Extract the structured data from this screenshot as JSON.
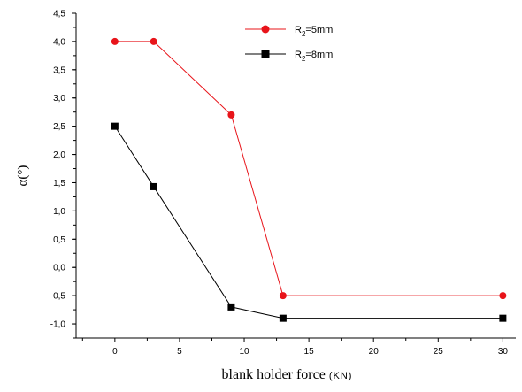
{
  "chart_data": {
    "type": "line",
    "xlabel": "blank holder force",
    "xlabel_unit": "(KN)",
    "ylabel": "α(°)",
    "xlim": [
      -3,
      31
    ],
    "ylim": [
      -1.25,
      4.5
    ],
    "xticks": [
      0,
      5,
      10,
      15,
      20,
      25,
      30
    ],
    "yticks": [
      -1.0,
      -0.5,
      0.0,
      0.5,
      1.0,
      1.5,
      2.0,
      2.5,
      3.0,
      3.5,
      4.0,
      4.5
    ],
    "ytick_labels": [
      "-1,0",
      "-0,5",
      "0,0",
      "0,5",
      "1,0",
      "1,5",
      "2,0",
      "2,5",
      "3,0",
      "3,5",
      "4,0",
      "4,5"
    ],
    "legend_position": "top-right",
    "series": [
      {
        "name": "R2=5mm",
        "legend_main": "R",
        "legend_sub": "2",
        "legend_rest": "=5mm",
        "color": "#e8141a",
        "marker": "circle",
        "x": [
          0,
          3,
          9,
          13,
          30
        ],
        "y": [
          4.0,
          4.0,
          2.7,
          -0.5,
          -0.5
        ]
      },
      {
        "name": "R2=8mm",
        "legend_main": "R",
        "legend_sub": "2",
        "legend_rest": "=8mm",
        "color": "#000000",
        "marker": "square",
        "x": [
          0,
          3,
          9,
          13,
          30
        ],
        "y": [
          2.5,
          1.43,
          -0.7,
          -0.9,
          -0.9
        ]
      }
    ]
  }
}
